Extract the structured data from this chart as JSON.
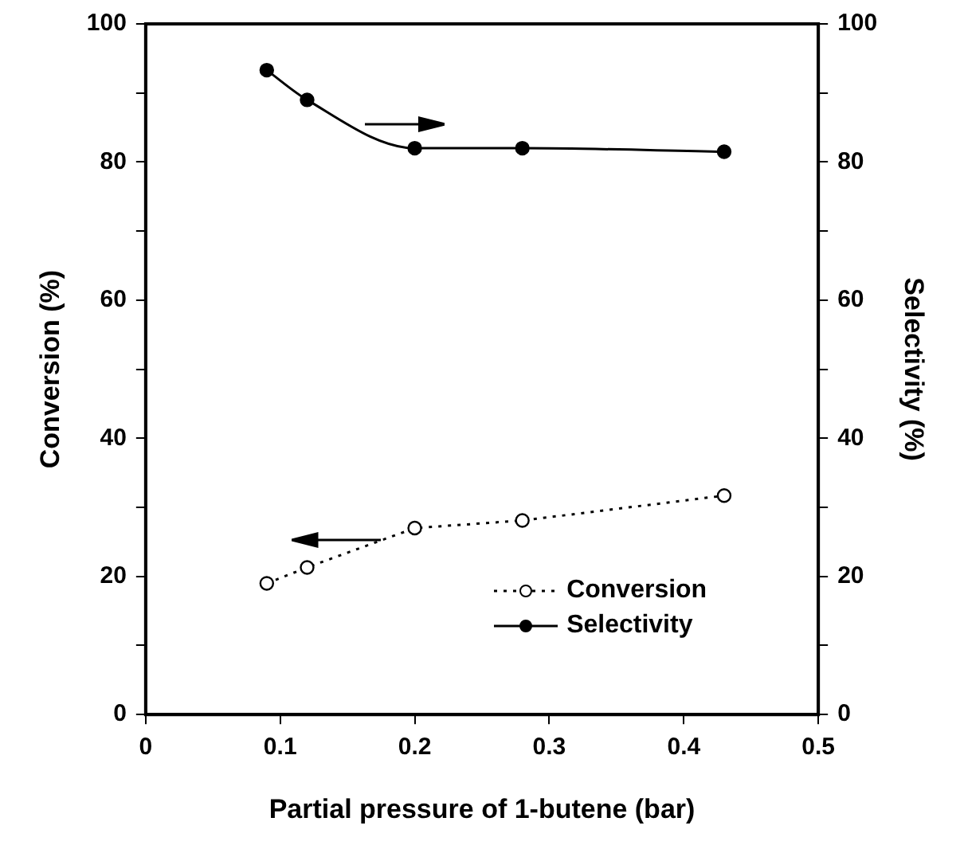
{
  "chart_data": {
    "type": "line",
    "xlabel": "Partial pressure of 1-butene (bar)",
    "ylabel": "Conversion (%)",
    "y2label": "Selectivity (%)",
    "x": [
      0.09,
      0.12,
      0.2,
      0.28,
      0.43
    ],
    "series": [
      {
        "name": "Conversion",
        "color": "#000000",
        "values": [
          19,
          21.3,
          27,
          28.1,
          31.7
        ],
        "line_style": "dotted",
        "marker": "circle"
      },
      {
        "name": "Selectivity",
        "color": "#000000",
        "values": [
          93.3,
          89,
          82,
          82,
          81.5
        ],
        "axis": "y2",
        "line_style": "solid",
        "marker": "circle"
      }
    ],
    "xlim": [
      0,
      0.5
    ],
    "xticks": [
      0,
      0.1,
      0.2,
      0.3,
      0.4,
      0.5
    ],
    "ylim": [
      0,
      100
    ],
    "yticks": [
      0,
      {
        "value": 10,
        "label": null
      },
      20,
      {
        "value": 30,
        "label": null
      },
      40,
      {
        "value": 50,
        "label": null
      },
      60,
      {
        "value": 70,
        "label": null
      },
      80,
      {
        "value": 90,
        "label": null
      },
      100
    ],
    "y2lim": [
      0,
      100
    ],
    "y2ticks": [
      0,
      {
        "value": 10,
        "label": null
      },
      20,
      {
        "value": 30,
        "label": null
      },
      40,
      {
        "value": 50,
        "label": null
      },
      60,
      {
        "value": 70,
        "label": null
      },
      80,
      {
        "value": 90,
        "label": null
      },
      100
    ],
    "grid": false,
    "legend": "bottom right"
  }
}
